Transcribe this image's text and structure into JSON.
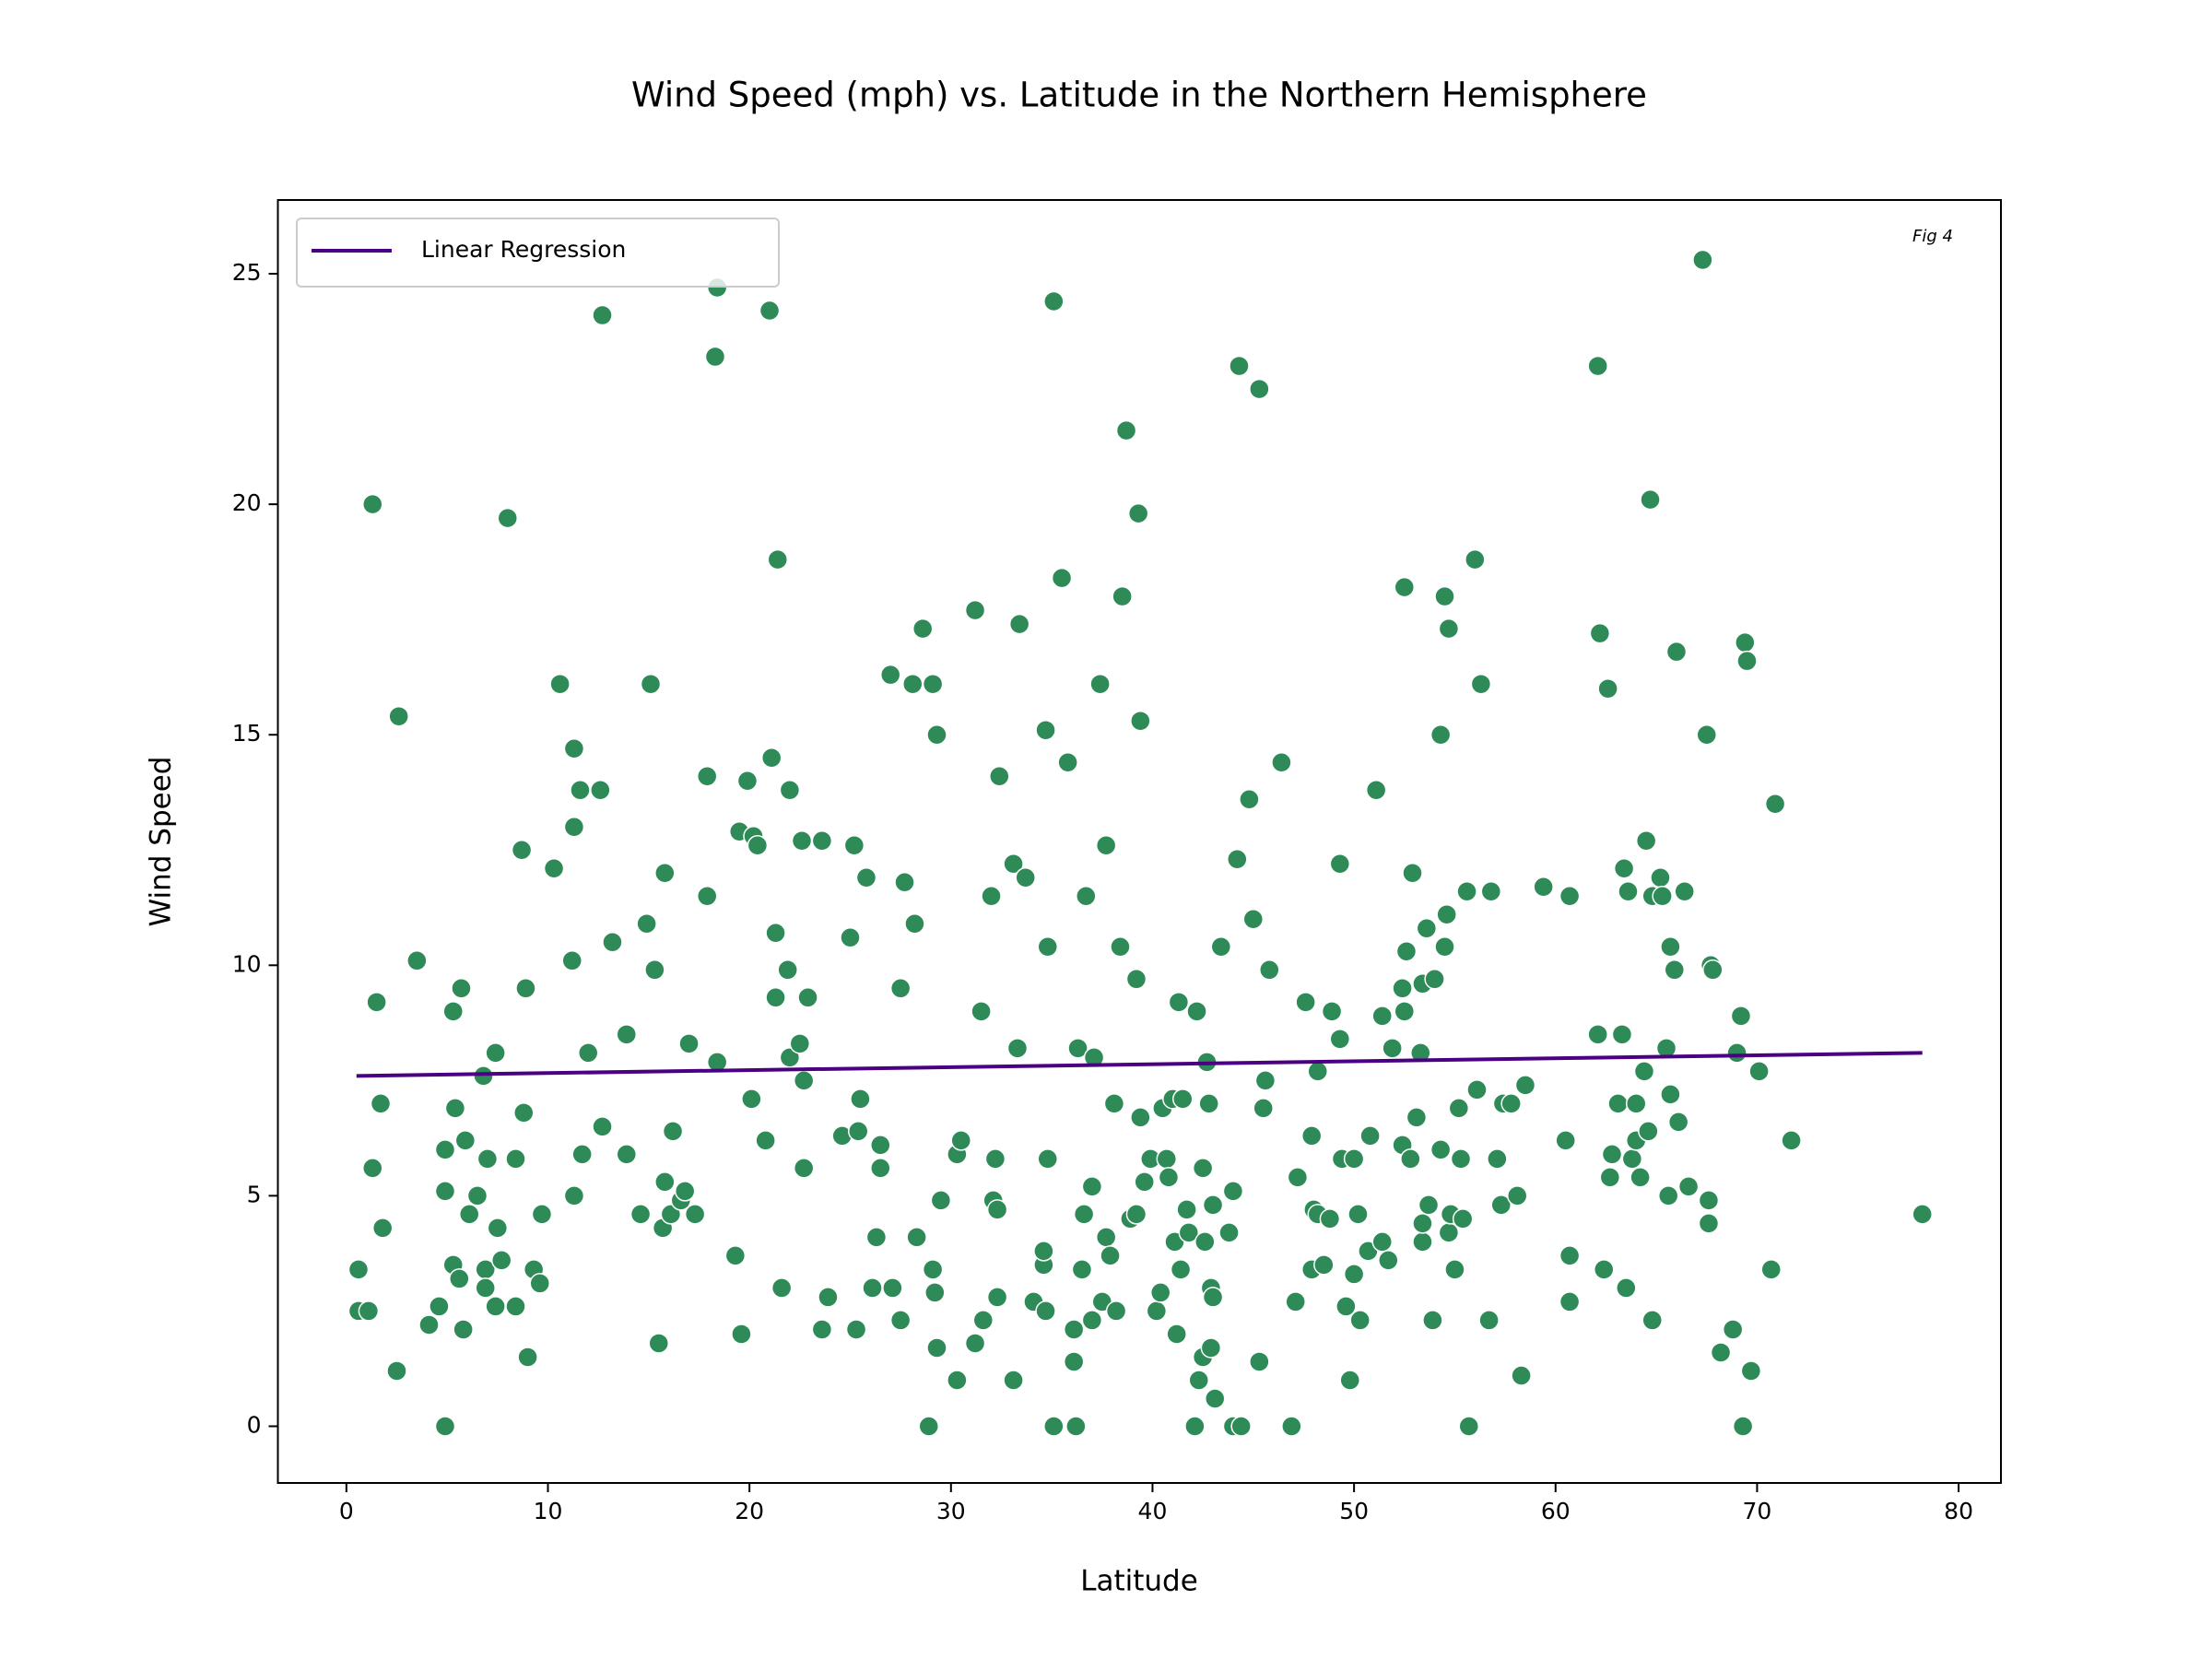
{
  "chart_data": {
    "type": "scatter",
    "title": "Wind Speed (mph) vs. Latitude in the Northern Hemisphere",
    "xlabel": "Latitude",
    "ylabel": "Wind Speed",
    "annotation": "Fig 4",
    "color": "#2e8b57",
    "legend": "upper left",
    "x": [
      0.6,
      0.6,
      1.1,
      1.3,
      1.3,
      1.5,
      1.7,
      1.8,
      2.5,
      2.6,
      3.5,
      4.1,
      4.6,
      4.9,
      4.9,
      4.9,
      5.3,
      5.4,
      5.3,
      5.6,
      5.7,
      5.9,
      5.8,
      6.1,
      6.5,
      6.8,
      7.0,
      6.9,
      6.9,
      7.4,
      7.4,
      7.5,
      7.7,
      8.0,
      8.4,
      8.4,
      8.7,
      8.8,
      8.9,
      9.0,
      9.3,
      9.6,
      9.7,
      10.3,
      10.6,
      11.2,
      11.3,
      11.3,
      11.3,
      11.6,
      11.7,
      12.0,
      12.6,
      12.7,
      12.7,
      13.2,
      13.9,
      13.9,
      14.6,
      14.9,
      15.1,
      15.3,
      15.5,
      15.8,
      15.8,
      15.7,
      16.1,
      16.2,
      16.6,
      16.8,
      17.0,
      17.3,
      17.9,
      17.9,
      18.4,
      18.3,
      18.4,
      19.3,
      19.5,
      19.6,
      19.9,
      20.2,
      20.1,
      20.4,
      20.8,
      21.0,
      21.1,
      21.3,
      21.4,
      21.3,
      21.6,
      21.9,
      22.0,
      22.0,
      22.5,
      22.7,
      22.7,
      22.9,
      22.6,
      23.6,
      23.9,
      23.6,
      24.6,
      25.0,
      25.2,
      25.3,
      25.4,
      25.5,
      25.8,
      26.1,
      26.3,
      26.5,
      26.5,
      27.0,
      27.1,
      27.5,
      27.5,
      27.7,
      28.1,
      28.2,
      28.3,
      28.6,
      28.9,
      29.1,
      29.1,
      29.2,
      29.3,
      29.3,
      29.5,
      30.3,
      30.3,
      30.5,
      31.2,
      31.2,
      31.5,
      31.6,
      32.0,
      32.2,
      32.1,
      32.3,
      32.3,
      32.4,
      33.1,
      33.1,
      33.3,
      33.4,
      33.7,
      34.1,
      34.6,
      34.6,
      34.8,
      34.8,
      34.7,
      34.7,
      35.1,
      35.1,
      35.5,
      35.8,
      36.1,
      36.2,
      36.1,
      36.3,
      36.5,
      36.6,
      36.7,
      37.0,
      37.0,
      37.1,
      37.4,
      37.5,
      37.7,
      37.7,
      37.9,
      38.1,
      38.2,
      38.5,
      38.4,
      38.7,
      38.9,
      39.2,
      39.3,
      39.2,
      39.4,
      39.4,
      39.6,
      39.9,
      40.2,
      40.4,
      40.5,
      40.7,
      40.8,
      41.0,
      41.1,
      41.2,
      41.3,
      41.4,
      41.5,
      41.7,
      41.8,
      42.1,
      42.2,
      42.3,
      42.5,
      42.5,
      42.6,
      42.7,
      42.8,
      42.9,
      42.9,
      43.0,
      43.0,
      43.1,
      43.4,
      43.8,
      44.0,
      44.0,
      44.2,
      44.4,
      44.3,
      44.8,
      45.0,
      45.3,
      45.3,
      45.5,
      45.6,
      45.8,
      46.4,
      46.9,
      47.1,
      47.2,
      47.6,
      47.9,
      47.9,
      48.0,
      48.2,
      48.2,
      48.5,
      48.8,
      48.9,
      49.3,
      49.3,
      49.4,
      49.6,
      49.8,
      50.0,
      50.0,
      50.2,
      50.3,
      50.7,
      50.8,
      51.1,
      51.4,
      51.4,
      51.7,
      51.9,
      52.4,
      52.4,
      52.5,
      52.6,
      52.5,
      52.8,
      52.9,
      53.1,
      53.3,
      53.4,
      53.4,
      53.4,
      53.6,
      53.7,
      53.9,
      54.0,
      54.3,
      54.3,
      54.5,
      54.5,
      54.6,
      54.7,
      54.7,
      54.8,
      55.0,
      55.2,
      55.3,
      55.4,
      55.6,
      55.7,
      56.0,
      56.1,
      56.3,
      56.7,
      56.8,
      57.1,
      57.3,
      57.4,
      57.8,
      58.1,
      58.3,
      58.5,
      59.4,
      60.5,
      60.7,
      60.7,
      60.7,
      62.1,
      62.1,
      62.2,
      62.4,
      62.6,
      62.7,
      62.8,
      63.1,
      63.3,
      63.4,
      63.5,
      63.6,
      63.8,
      64.0,
      64.0,
      64.2,
      64.4,
      64.5,
      64.6,
      64.8,
      64.7,
      64.8,
      65.2,
      65.3,
      65.5,
      65.6,
      65.7,
      65.7,
      65.9,
      66.0,
      66.1,
      66.4,
      66.6,
      67.3,
      67.5,
      67.6,
      67.6,
      67.7,
      67.8,
      68.2,
      68.8,
      69.0,
      69.2,
      69.3,
      69.4,
      69.5,
      69.7,
      70.1,
      70.7,
      70.9,
      71.7,
      78.2
    ],
    "values": [
      2.5,
      3.4,
      2.5,
      20.0,
      5.6,
      9.2,
      7.0,
      4.3,
      1.2,
      15.4,
      10.1,
      2.2,
      2.6,
      0,
      5.1,
      6.0,
      9.0,
      6.9,
      3.5,
      3.2,
      9.5,
      6.2,
      2.1,
      4.6,
      5.0,
      7.6,
      5.8,
      3.4,
      3.0,
      2.6,
      8.1,
      4.3,
      3.6,
      19.7,
      5.8,
      2.6,
      12.5,
      6.8,
      9.5,
      1.5,
      3.4,
      3.1,
      4.6,
      12.1,
      16.1,
      10.1,
      13.0,
      14.7,
      5.0,
      13.8,
      5.9,
      8.1,
      13.8,
      24.1,
      6.5,
      10.5,
      5.9,
      8.5,
      4.6,
      10.9,
      16.1,
      9.9,
      1.8,
      12.0,
      5.3,
      4.3,
      4.6,
      6.4,
      4.9,
      5.1,
      8.3,
      4.6,
      14.1,
      11.5,
      24.7,
      23.2,
      7.9,
      3.7,
      12.9,
      2.0,
      14.0,
      12.8,
      7.1,
      12.6,
      6.2,
      24.2,
      14.5,
      9.3,
      18.8,
      10.7,
      3.0,
      9.9,
      13.8,
      8.0,
      8.3,
      7.5,
      5.6,
      9.3,
      12.7,
      12.7,
      2.8,
      2.1,
      6.3,
      10.6,
      12.6,
      2.1,
      6.4,
      7.1,
      11.9,
      3.0,
      4.1,
      6.1,
      5.6,
      16.3,
      3.0,
      2.3,
      9.5,
      11.8,
      16.1,
      10.9,
      4.1,
      17.3,
      0,
      3.4,
      16.1,
      2.9,
      1.7,
      15.0,
      4.9,
      1.0,
      5.9,
      6.2,
      17.7,
      1.8,
      9.0,
      2.3,
      11.5,
      5.8,
      4.9,
      4.7,
      2.8,
      14.1,
      1.0,
      12.2,
      8.2,
      17.4,
      11.9,
      2.7,
      3.5,
      3.8,
      5.8,
      10.4,
      2.5,
      15.1,
      24.4,
      0,
      18.4,
      14.4,
      1.4,
      0,
      2.1,
      8.2,
      3.4,
      4.6,
      11.5,
      5.2,
      2.3,
      8.0,
      16.1,
      2.7,
      4.1,
      12.6,
      3.7,
      7.0,
      2.5,
      18.0,
      10.4,
      21.6,
      4.5,
      4.6,
      19.8,
      9.7,
      15.3,
      6.7,
      5.3,
      5.8,
      2.5,
      2.9,
      6.9,
      5.8,
      5.4,
      7.1,
      4.0,
      2.0,
      9.2,
      3.4,
      7.1,
      4.7,
      4.2,
      0,
      9.0,
      1.0,
      5.6,
      1.5,
      4.0,
      7.9,
      7.0,
      3.0,
      1.7,
      2.8,
      4.8,
      0.6,
      10.4,
      4.2,
      0,
      5.1,
      12.3,
      0,
      23.0,
      13.6,
      11.0,
      22.5,
      1.4,
      6.9,
      7.5,
      9.9,
      14.4,
      0,
      2.7,
      5.4,
      9.2,
      6.3,
      3.4,
      4.7,
      7.7,
      4.6,
      3.5,
      4.5,
      9.0,
      8.4,
      12.2,
      5.8,
      2.6,
      1.0,
      3.3,
      5.8,
      4.6,
      2.3,
      3.8,
      6.3,
      13.8,
      4.0,
      8.9,
      3.6,
      8.2,
      9.5,
      6.1,
      18.2,
      10.3,
      9.0,
      5.8,
      12.0,
      6.7,
      8.1,
      4.0,
      9.6,
      4.4,
      10.8,
      4.8,
      2.3,
      9.7,
      15.0,
      6.0,
      18.0,
      10.4,
      11.1,
      17.3,
      4.2,
      4.6,
      3.4,
      6.9,
      5.8,
      4.5,
      11.6,
      0,
      18.8,
      7.3,
      16.1,
      2.3,
      11.6,
      5.8,
      4.8,
      7.0,
      7.0,
      5.0,
      1.1,
      7.4,
      11.7,
      6.2,
      3.7,
      2.7,
      11.5,
      23.0,
      8.5,
      17.2,
      3.4,
      16.0,
      5.4,
      5.9,
      7.0,
      8.5,
      12.1,
      3.0,
      11.6,
      5.8,
      6.2,
      7.0,
      5.4,
      7.7,
      12.7,
      6.4,
      2.3,
      20.1,
      11.5,
      11.9,
      11.5,
      8.2,
      5.0,
      10.4,
      7.2,
      9.9,
      16.8,
      6.6,
      11.6,
      5.2,
      25.3,
      15.0,
      4.4,
      4.9,
      10.0,
      9.9,
      1.6,
      2.1,
      8.1,
      8.9,
      0,
      17.0,
      16.6,
      1.2,
      7.7,
      3.4,
      13.5,
      6.2,
      4.6
    ],
    "regression": {
      "name": "Linear Regression",
      "color": "#4b0082",
      "x": [
        0.5,
        78.2
      ],
      "values": [
        7.6,
        8.1
      ]
    },
    "xlim": [
      -3.4,
      82.1
    ],
    "ylim": [
      -1.23,
      26.6
    ],
    "xticks": [
      0,
      10,
      20,
      30,
      40,
      50,
      60,
      70,
      80
    ],
    "yticks": [
      0,
      5,
      10,
      15,
      20,
      25
    ]
  }
}
